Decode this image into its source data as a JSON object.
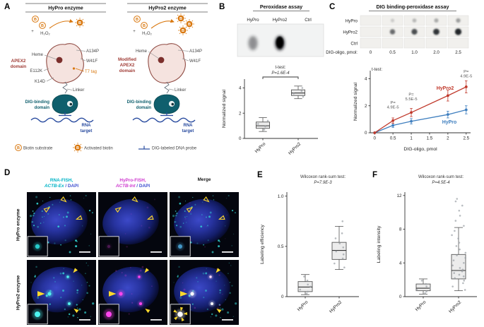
{
  "panels": {
    "A": {
      "label": "A",
      "title_left": "HyPro enzyme",
      "title_right": "HyPro2 enzyme",
      "b": "B",
      "plus": "+",
      "h2o2": "H₂O₂",
      "heme": "Heme",
      "apex2_left": [
        "APEX2",
        "domain"
      ],
      "apex2_right": [
        "Modified",
        "APEX2",
        "domain"
      ],
      "a134p": "A134P",
      "w41f": "W41F",
      "t7_tag": "T7 tag",
      "e112k": "E112K",
      "k14d": "K14D",
      "linker": "Linker",
      "dig_binding": [
        "DIG-binding",
        "domain"
      ],
      "rna_target": [
        "RNA",
        "target"
      ],
      "legend": {
        "biotin": "Biotin substrate",
        "activated": "Activated biotin",
        "probe": "DIG-labeled DNA probe"
      },
      "colors": {
        "orange": "#d9780f",
        "maroon": "#8f4a42",
        "red_text": "#a03c36",
        "teal": "#0f5f6d",
        "blue": "#26499e"
      }
    },
    "B": {
      "label": "B",
      "title": "Peroxidase assay",
      "lanes": [
        "HyPro",
        "HyPro2",
        "Ctrl"
      ],
      "smudge_opacity": [
        0.45,
        1,
        0
      ]
    },
    "C": {
      "label": "C",
      "title": "DIG binding-peroxidase assay",
      "blot": {
        "rows": [
          "HyPro",
          "HyPro2",
          "Ctrl"
        ],
        "cols_label": "DIG-oligo, pmol:",
        "cols": [
          "0",
          "0.5",
          "1.0",
          "2.0",
          "2.5"
        ],
        "intensities": [
          [
            0,
            0.18,
            0.28,
            0.34,
            0.4
          ],
          [
            0,
            0.65,
            0.8,
            0.92,
            1
          ],
          [
            0,
            0,
            0,
            0,
            0
          ]
        ]
      }
    },
    "D": {
      "label": "D",
      "columns": [
        {
          "line1": "RNA-FISH,",
          "gene": "ACTB-Ex",
          "dapi": " / DAPI",
          "color": "#00b3c6",
          "dapi_color": "#3c4ecf"
        },
        {
          "line1": "HyPro-FISH,",
          "gene": "ACTB-Int",
          "dapi": " / DAPI",
          "color": "#cf3bcf",
          "dapi_color": "#3c4ecf"
        },
        {
          "line1": "Merge",
          "color": "#1a1a1a"
        }
      ],
      "rows": [
        "HyPro enzyme",
        "HyPro2 enzyme"
      ]
    },
    "E": {
      "label": "E"
    },
    "F": {
      "label": "F"
    }
  },
  "chart_data": [
    {
      "id": "panel-B-boxplot",
      "type": "box",
      "stat": "t-test:",
      "p": "P=1.6E-4",
      "ylabel": "Normalized signal",
      "ylim": [
        0,
        4.7
      ],
      "yticks": [
        "0",
        "2",
        "4"
      ],
      "categories": [
        "HyPro",
        "HyPro2"
      ],
      "boxes": [
        {
          "min": 0.55,
          "q1": 0.8,
          "median": 1.0,
          "q3": 1.3,
          "max": 1.65
        },
        {
          "min": 3.15,
          "q1": 3.4,
          "median": 3.6,
          "q3": 3.85,
          "max": 4.15
        }
      ],
      "points": [
        [
          0.7,
          0.95,
          1.15,
          1.4
        ],
        [
          3.3,
          3.55,
          3.75,
          4.0
        ]
      ]
    },
    {
      "id": "panel-C-line",
      "type": "line",
      "stat": "t-test:",
      "xlabel": "DIG-oligo, pmol",
      "ylabel": "Normalized signal",
      "x": [
        0,
        0.5,
        1.0,
        2.0,
        2.5
      ],
      "xlim": [
        -0.12,
        2.62
      ],
      "xticks": [
        "0",
        "0.5",
        "1",
        "1.5",
        "2",
        "2.5"
      ],
      "ylim": [
        0,
        4.6
      ],
      "yticks": [
        "0",
        "2",
        "4"
      ],
      "series": [
        {
          "name": "HyPro",
          "color": "#3f7fbf",
          "values": [
            0,
            0.55,
            0.85,
            1.35,
            1.7
          ],
          "errors": [
            0.04,
            0.15,
            0.2,
            0.25,
            0.3
          ]
        },
        {
          "name": "HyPro2",
          "color": "#c0392b",
          "values": [
            0,
            0.9,
            1.5,
            2.75,
            3.4
          ],
          "errors": [
            0.04,
            0.2,
            0.3,
            0.4,
            0.45
          ]
        }
      ],
      "annotations": [
        {
          "x": 0.5,
          "y": 2.15,
          "lines": [
            "P=",
            "4.9E-5"
          ]
        },
        {
          "x": 1.0,
          "y": 2.75,
          "lines": [
            "P=",
            "5.5E-5"
          ]
        },
        {
          "x": 2.5,
          "y": 4.45,
          "lines": [
            "P=",
            "4.9E-5"
          ]
        }
      ]
    },
    {
      "id": "panel-E-boxplot",
      "type": "box",
      "stat": "Wilcoxon rank-sum test:",
      "p": "P=7.9E-3",
      "ylabel": "Labeling efficiency",
      "ylim": [
        0,
        1.04
      ],
      "yticks": [
        "0",
        "0.5",
        "1.0"
      ],
      "categories": [
        "HyPro",
        "HyPro2"
      ],
      "boxes": [
        {
          "min": 0.02,
          "q1": 0.05,
          "median": 0.095,
          "q3": 0.15,
          "max": 0.22
        },
        {
          "min": 0.27,
          "q1": 0.37,
          "median": 0.46,
          "q3": 0.54,
          "max": 0.7
        }
      ],
      "points": [
        [
          0.03,
          0.05,
          0.07,
          0.1,
          0.12,
          0.16,
          0.2
        ],
        [
          0.29,
          0.33,
          0.38,
          0.42,
          0.45,
          0.49,
          0.53,
          0.58,
          0.63,
          0.75
        ]
      ]
    },
    {
      "id": "panel-F-boxplot",
      "type": "box",
      "stat": "Wilcoxon rank-sum test:",
      "p": "P=4.5E-4",
      "ylabel": "Labeling intensity",
      "ylim": [
        0,
        12.4
      ],
      "yticks": [
        "0",
        "4",
        "8",
        "12"
      ],
      "categories": [
        "HyPro",
        "HyPro2"
      ],
      "boxes": [
        {
          "min": 0.3,
          "q1": 0.7,
          "median": 1.0,
          "q3": 1.5,
          "max": 2.1
        },
        {
          "min": 0.7,
          "q1": 2.1,
          "median": 3.1,
          "q3": 5.0,
          "max": 8.2
        }
      ],
      "points": [
        [
          0.4,
          0.6,
          0.8,
          1.0,
          1.2,
          1.5,
          1.9
        ],
        [
          0.8,
          1.2,
          1.6,
          1.9,
          2.2,
          2.4,
          2.6,
          2.8,
          3.0,
          3.2,
          3.4,
          3.7,
          4.0,
          4.3,
          4.6,
          4.9,
          5.2,
          5.6,
          6.0,
          6.4,
          6.9,
          7.3,
          7.8,
          8.4,
          9.0,
          9.6,
          10.2,
          10.8,
          11.3,
          11.6
        ]
      ]
    }
  ]
}
